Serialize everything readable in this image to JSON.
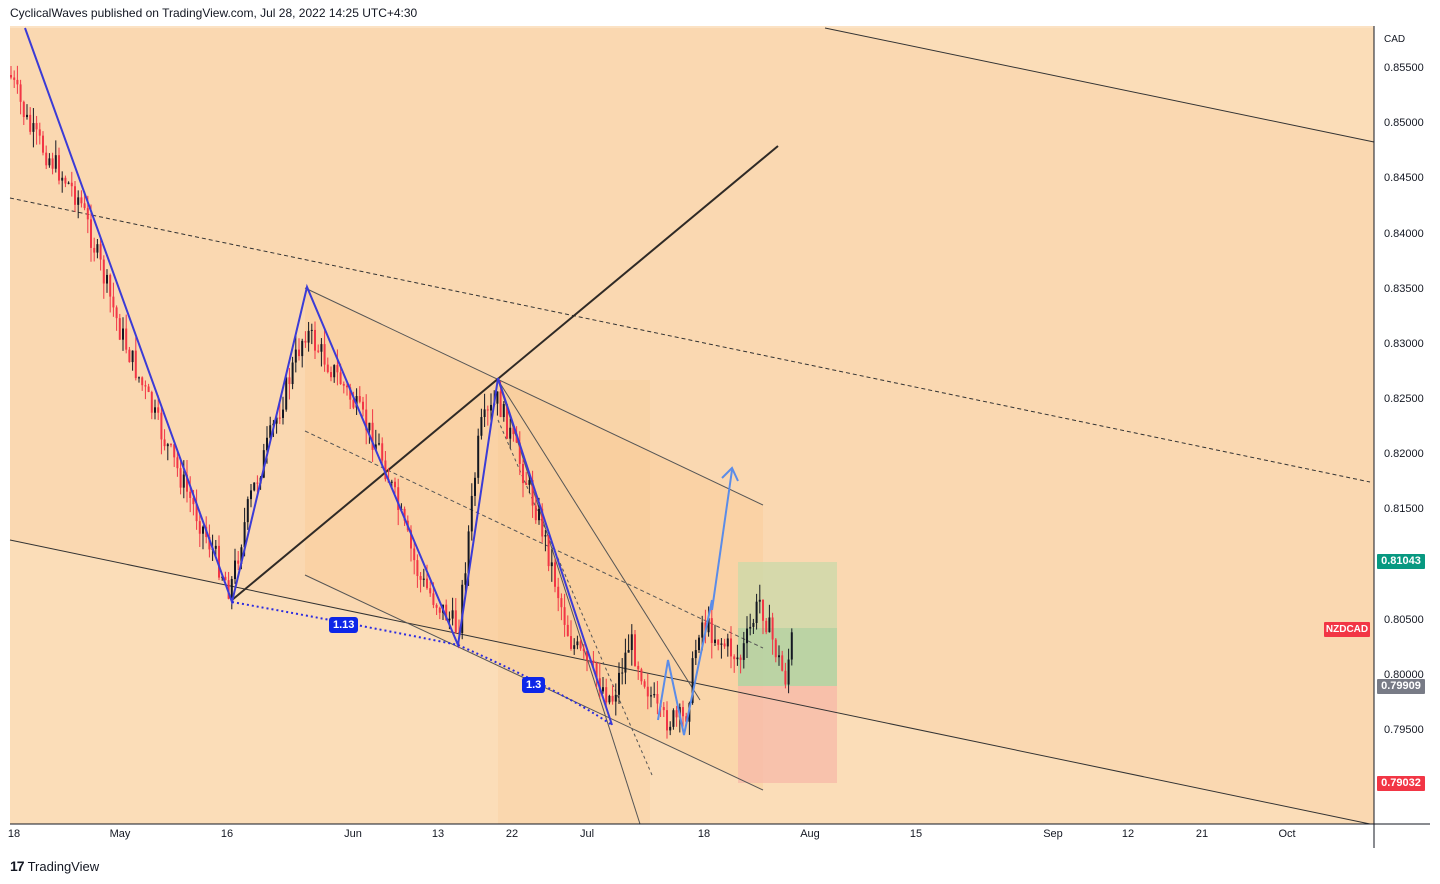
{
  "header": {
    "text": "CyclicalWaves published on TradingView.com, Jul 28, 2022 14:25 UTC+4:30"
  },
  "footer": {
    "brand": "TradingView",
    "logo_glyph": "17"
  },
  "axis": {
    "currency": "CAD",
    "symbol": "NZDCAD"
  },
  "chart_data": {
    "type": "candlestick",
    "symbol": "NZDCAD",
    "y_ticks": [
      "0.85500",
      "0.85000",
      "0.84500",
      "0.84000",
      "0.83500",
      "0.83000",
      "0.82500",
      "0.82000",
      "0.81500",
      "0.80500",
      "0.80000",
      "0.79500"
    ],
    "x_ticks": [
      "18",
      "May",
      "16",
      "Jun",
      "13",
      "22",
      "Jul",
      "18",
      "Aug",
      "15",
      "Sep",
      "12",
      "21",
      "Oct"
    ],
    "badges": [
      {
        "value": "0.81043",
        "color": "#089981"
      },
      {
        "value": "0.79909",
        "color": "#787b86"
      },
      {
        "value": "0.79032",
        "color": "#f23645"
      }
    ],
    "fib_labels": [
      "1.13",
      "1.3"
    ],
    "ylim": [
      0.787,
      0.86
    ],
    "colors": {
      "up": "#131722",
      "down": "#f23645",
      "harmonic": "#3b3bd6",
      "projection": "#5b8ce8"
    }
  }
}
